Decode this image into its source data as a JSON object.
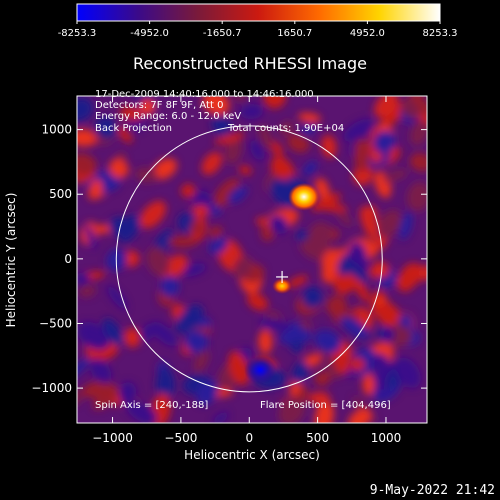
{
  "colorbar": {
    "ticks": [
      "-8253.3",
      "-4952.0",
      "-1650.7",
      "1650.7",
      "4952.0",
      "8253.3"
    ],
    "stops": [
      "#0000ff",
      "#3a0a8a",
      "#7a1a3a",
      "#cc1a10",
      "#ff6a00",
      "#ffd400",
      "#ffffff"
    ]
  },
  "chart_data": {
    "type": "heatmap",
    "title": "Reconstructed RHESSI Image",
    "xlabel": "Heliocentric X (arcsec)",
    "ylabel": "Heliocentric Y (arcsec)",
    "xlim": [
      -1260,
      1300
    ],
    "ylim": [
      -1270,
      1260
    ],
    "xticks": [
      -1000,
      -500,
      0,
      500,
      1000
    ],
    "yticks": [
      1000,
      500,
      0,
      -500,
      -1000
    ],
    "xtick_labels": [
      "−1000",
      "−500",
      "0",
      "500",
      "1000"
    ],
    "ytick_labels": [
      "1000",
      "500",
      "0",
      "−500",
      "−1000"
    ],
    "solar_radius": 973,
    "marker": {
      "x": 240,
      "y": -140
    },
    "sources": [
      {
        "x": 400,
        "y": 480,
        "peak": 8253.3,
        "kind": "bright"
      },
      {
        "x": 240,
        "y": -210,
        "peak": 4800,
        "kind": "bright"
      },
      {
        "x": 80,
        "y": -860,
        "peak": -8000,
        "kind": "dark"
      }
    ]
  },
  "annotations": {
    "time_range": "17-Dec-2009 14:40:16.000 to 14:46:16.000",
    "detectors": "Detectors: 7F 8F 9F, Att 0",
    "energy_range": "Energy Range: 6.0 - 12.0 keV",
    "method": "Back Projection",
    "total_counts": "Total counts: 1.90E+04",
    "spin_axis": "Spin Axis = [240,-188]",
    "flare_position": "Flare Position = [404,496]"
  },
  "footer": {
    "timestamp": "9-May-2022 21:42"
  }
}
